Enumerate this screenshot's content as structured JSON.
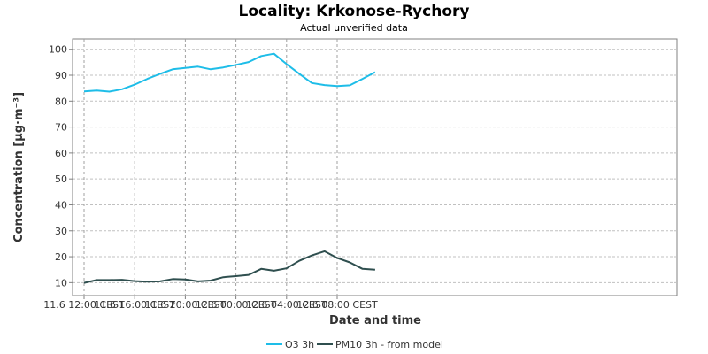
{
  "chart_data": {
    "type": "line",
    "title": "Locality: Krkonose-Rychory",
    "subtitle": "Actual unverified data",
    "xlabel": "Date and time",
    "ylabel": "Concentration [µg·m⁻³]",
    "ylim": [
      5,
      104
    ],
    "yticks": [
      10,
      20,
      30,
      40,
      50,
      60,
      70,
      80,
      90,
      100
    ],
    "xticks": [
      {
        "index": 0,
        "label": "11.6 12:00 CEST"
      },
      {
        "index": 4,
        "label": "11.6 16:00 CEST"
      },
      {
        "index": 8,
        "label": "11.6 20:00 CEST"
      },
      {
        "index": 12,
        "label": "12.6 00:00 CEST"
      },
      {
        "index": 16,
        "label": "12.6 04:00 CEST"
      },
      {
        "index": 20,
        "label": "12.6 08:00 CEST"
      }
    ],
    "x": [
      "11.6 12:00",
      "11.6 13:00",
      "11.6 14:00",
      "11.6 15:00",
      "11.6 16:00",
      "11.6 17:00",
      "11.6 18:00",
      "11.6 19:00",
      "11.6 20:00",
      "11.6 21:00",
      "11.6 22:00",
      "11.6 23:00",
      "12.6 00:00",
      "12.6 01:00",
      "12.6 02:00",
      "12.6 03:00",
      "12.6 04:00",
      "12.6 05:00",
      "12.6 06:00",
      "12.6 07:00",
      "12.6 08:00",
      "12.6 09:00",
      "12.6 10:00",
      "12.6 11:00"
    ],
    "series": [
      {
        "name": "O3 3h",
        "color": "#1ebde8",
        "values": [
          83.8,
          84.1,
          83.7,
          84.6,
          86.4,
          88.6,
          90.5,
          92.3,
          92.8,
          93.3,
          92.3,
          93.0,
          94.0,
          95.1,
          97.4,
          98.3,
          94.3,
          90.6,
          87.0,
          86.2,
          85.8,
          86.1,
          88.6,
          91.2
        ]
      },
      {
        "name": "PM10 3h - from model",
        "color": "#2f4f4f",
        "values": [
          9.9,
          11.0,
          11.0,
          11.1,
          10.6,
          10.4,
          10.5,
          11.4,
          11.2,
          10.5,
          10.8,
          12.1,
          12.5,
          13.0,
          15.3,
          14.6,
          15.5,
          18.4,
          20.5,
          22.1,
          19.5,
          17.8,
          15.3,
          15.0
        ]
      }
    ],
    "grid": true,
    "legend_position": "bottom"
  }
}
